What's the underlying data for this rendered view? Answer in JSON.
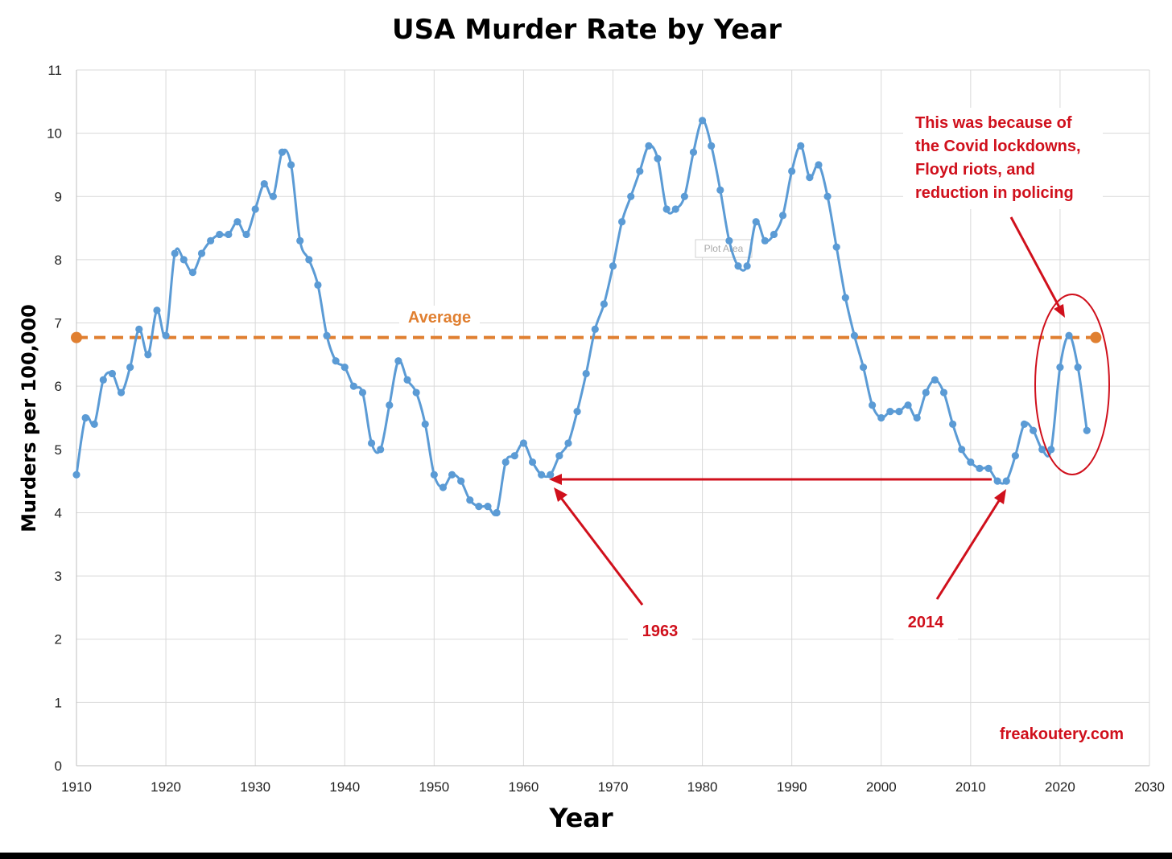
{
  "chart_data": {
    "type": "line",
    "title": "USA Murder Rate by Year",
    "xlabel": "Year",
    "ylabel": "Murders per 100,000",
    "xlim": [
      1910,
      2030
    ],
    "ylim": [
      0,
      11
    ],
    "x_ticks": [
      1910,
      1920,
      1930,
      1940,
      1950,
      1960,
      1970,
      1980,
      1990,
      2000,
      2010,
      2020,
      2030
    ],
    "y_ticks": [
      0,
      1,
      2,
      3,
      4,
      5,
      6,
      7,
      8,
      9,
      10,
      11
    ],
    "grid": true,
    "series": [
      {
        "name": "Murder rate",
        "color": "#5b9bd5",
        "x": [
          1910,
          1911,
          1912,
          1913,
          1914,
          1915,
          1916,
          1917,
          1918,
          1919,
          1920,
          1921,
          1922,
          1923,
          1924,
          1925,
          1926,
          1927,
          1928,
          1929,
          1930,
          1931,
          1932,
          1933,
          1934,
          1935,
          1936,
          1937,
          1938,
          1939,
          1940,
          1941,
          1942,
          1943,
          1944,
          1945,
          1946,
          1947,
          1948,
          1949,
          1950,
          1951,
          1952,
          1953,
          1954,
          1955,
          1956,
          1957,
          1958,
          1959,
          1960,
          1961,
          1962,
          1963,
          1964,
          1965,
          1966,
          1967,
          1968,
          1969,
          1970,
          1971,
          1972,
          1973,
          1974,
          1975,
          1976,
          1977,
          1978,
          1979,
          1980,
          1981,
          1982,
          1983,
          1984,
          1985,
          1986,
          1987,
          1988,
          1989,
          1990,
          1991,
          1992,
          1993,
          1994,
          1995,
          1996,
          1997,
          1998,
          1999,
          2000,
          2001,
          2002,
          2003,
          2004,
          2005,
          2006,
          2007,
          2008,
          2009,
          2010,
          2011,
          2012,
          2013,
          2014,
          2015,
          2016,
          2017,
          2018,
          2019,
          2020,
          2021,
          2022,
          2023
        ],
        "values": [
          4.6,
          5.5,
          5.4,
          6.1,
          6.2,
          5.9,
          6.3,
          6.9,
          6.5,
          7.2,
          6.8,
          8.1,
          8.0,
          7.8,
          8.1,
          8.3,
          8.4,
          8.4,
          8.6,
          8.4,
          8.8,
          9.2,
          9.0,
          9.7,
          9.5,
          8.3,
          8.0,
          7.6,
          6.8,
          6.4,
          6.3,
          6.0,
          5.9,
          5.1,
          5.0,
          5.7,
          6.4,
          6.1,
          5.9,
          5.4,
          4.6,
          4.4,
          4.6,
          4.5,
          4.2,
          4.1,
          4.1,
          4.0,
          4.8,
          4.9,
          5.1,
          4.8,
          4.6,
          4.6,
          4.9,
          5.1,
          5.6,
          6.2,
          6.9,
          7.3,
          7.9,
          8.6,
          9.0,
          9.4,
          9.8,
          9.6,
          8.8,
          8.8,
          9.0,
          9.7,
          10.2,
          9.8,
          9.1,
          8.3,
          7.9,
          7.9,
          8.6,
          8.3,
          8.4,
          8.7,
          9.4,
          9.8,
          9.3,
          9.5,
          9.0,
          8.2,
          7.4,
          6.8,
          6.3,
          5.7,
          5.5,
          5.6,
          5.6,
          5.7,
          5.5,
          5.9,
          6.1,
          5.9,
          5.4,
          5.0,
          4.8,
          4.7,
          4.7,
          4.5,
          4.5,
          4.9,
          5.4,
          5.3,
          5.0,
          5.0,
          6.3,
          6.8,
          6.3,
          5.3
        ]
      }
    ],
    "average": {
      "label": "Average",
      "value": 6.77,
      "color": "#e07f30"
    },
    "annotations": [
      {
        "text": "1963",
        "color": "#d0101c"
      },
      {
        "text": "2014",
        "color": "#d0101c"
      },
      {
        "lines": [
          "This was because of",
          "the Covid lockdowns,",
          "Floyd riots, and",
          "reduction in policing"
        ],
        "color": "#d0101c"
      }
    ],
    "watermark": "Plot Area",
    "source": "freakoutery.com"
  }
}
